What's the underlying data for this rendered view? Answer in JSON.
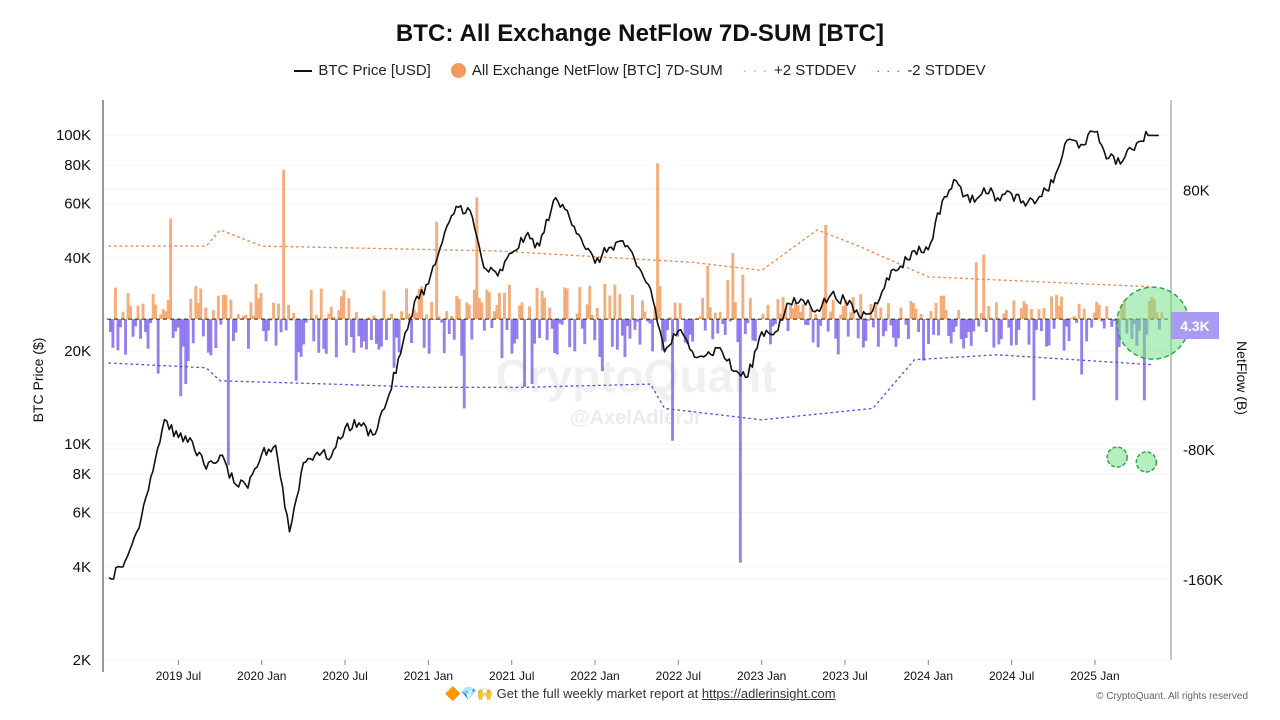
{
  "header": {
    "title": "BTC: All Exchange NetFlow 7D-SUM [BTC]"
  },
  "legend": {
    "items": [
      {
        "label": "BTC Price [USD]",
        "kind": "line",
        "color": "#111111"
      },
      {
        "label": "All Exchange NetFlow [BTC] 7D-SUM",
        "kind": "dot",
        "color": "#f29a5a"
      },
      {
        "label": "+2 STDDEV",
        "kind": "dotted",
        "color": "#e8895a"
      },
      {
        "label": "-2 STDDEV",
        "kind": "dotted",
        "color": "#5b57e0"
      }
    ]
  },
  "axes": {
    "left_label": "BTC Price ($)",
    "right_label": "NetFlow (B)"
  },
  "badge": {
    "value_label": "4.3K",
    "color": "#a99af4"
  },
  "watermark": {
    "brand": "CryptoQuant",
    "handle": "@AxelAdlerJr"
  },
  "footer": {
    "emoji": "🔶💎🙌",
    "text": "Get the full weekly market report at",
    "link": "https://adlerinsight.com",
    "copyright": "© CryptoQuant. All rights reserved"
  },
  "chart_data": {
    "type": "line",
    "title": "BTC: All Exchange NetFlow 7D-SUM [BTC]",
    "x_ticks": [
      "2019 Jul",
      "2020 Jan",
      "2020 Jul",
      "2021 Jan",
      "2021 Jul",
      "2022 Jan",
      "2022 Jul",
      "2023 Jan",
      "2023 Jul",
      "2024 Jan",
      "2024 Jul",
      "2025 Jan"
    ],
    "x_range": [
      "2019-02",
      "2025-05"
    ],
    "y_left": {
      "label": "BTC Price ($)",
      "scale": "log",
      "range": [
        2000,
        130000
      ],
      "ticks": [
        {
          "v": 2000,
          "label": "2K"
        },
        {
          "v": 4000,
          "label": "4K"
        },
        {
          "v": 6000,
          "label": "6K"
        },
        {
          "v": 8000,
          "label": "8K"
        },
        {
          "v": 10000,
          "label": "10K"
        },
        {
          "v": 20000,
          "label": "20K"
        },
        {
          "v": 40000,
          "label": "40K"
        },
        {
          "v": 60000,
          "label": "60K"
        },
        {
          "v": 80000,
          "label": "80K"
        },
        {
          "v": 100000,
          "label": "100K"
        }
      ]
    },
    "y_right": {
      "label": "NetFlow (B)",
      "scale": "linear",
      "range": [
        -210000,
        135000
      ],
      "ticks": [
        {
          "v": 80000,
          "label": "80K"
        },
        {
          "v": -80000,
          "label": "-80K"
        },
        {
          "v": -160000,
          "label": "-160K"
        }
      ]
    },
    "latest_netflow": 4300,
    "series": [
      {
        "name": "BTC Price [USD]",
        "axis": "left",
        "color": "#111111",
        "points": [
          [
            "2019-02",
            3700
          ],
          [
            "2019-03",
            4000
          ],
          [
            "2019-04",
            5200
          ],
          [
            "2019-05",
            7800
          ],
          [
            "2019-06",
            12000
          ],
          [
            "2019-07",
            10500
          ],
          [
            "2019-08",
            10200
          ],
          [
            "2019-09",
            8300
          ],
          [
            "2019-10",
            9200
          ],
          [
            "2019-11",
            7500
          ],
          [
            "2019-12",
            7200
          ],
          [
            "2020-01",
            9300
          ],
          [
            "2020-02",
            9900
          ],
          [
            "2020-03",
            5200
          ],
          [
            "2020-04",
            8700
          ],
          [
            "2020-05",
            9400
          ],
          [
            "2020-06",
            9100
          ],
          [
            "2020-07",
            11300
          ],
          [
            "2020-08",
            11700
          ],
          [
            "2020-09",
            10700
          ],
          [
            "2020-10",
            13700
          ],
          [
            "2020-11",
            19600
          ],
          [
            "2020-12",
            28900
          ],
          [
            "2021-01",
            33000
          ],
          [
            "2021-02",
            45000
          ],
          [
            "2021-03",
            58800
          ],
          [
            "2021-04",
            57000
          ],
          [
            "2021-05",
            37300
          ],
          [
            "2021-06",
            35000
          ],
          [
            "2021-07",
            41500
          ],
          [
            "2021-08",
            47100
          ],
          [
            "2021-09",
            43800
          ],
          [
            "2021-10",
            61300
          ],
          [
            "2021-11",
            57000
          ],
          [
            "2021-12",
            46300
          ],
          [
            "2022-01",
            38500
          ],
          [
            "2022-02",
            43200
          ],
          [
            "2022-03",
            45500
          ],
          [
            "2022-04",
            37700
          ],
          [
            "2022-05",
            31800
          ],
          [
            "2022-06",
            19900
          ],
          [
            "2022-07",
            23300
          ],
          [
            "2022-08",
            20000
          ],
          [
            "2022-09",
            19400
          ],
          [
            "2022-10",
            20500
          ],
          [
            "2022-11",
            17200
          ],
          [
            "2022-12",
            16500
          ],
          [
            "2023-01",
            23100
          ],
          [
            "2023-02",
            23100
          ],
          [
            "2023-03",
            28500
          ],
          [
            "2023-04",
            29200
          ],
          [
            "2023-05",
            27200
          ],
          [
            "2023-06",
            30500
          ],
          [
            "2023-07",
            29200
          ],
          [
            "2023-08",
            26000
          ],
          [
            "2023-09",
            27000
          ],
          [
            "2023-10",
            34500
          ],
          [
            "2023-11",
            37700
          ],
          [
            "2023-12",
            42300
          ],
          [
            "2024-01",
            42600
          ],
          [
            "2024-02",
            61200
          ],
          [
            "2024-03",
            71300
          ],
          [
            "2024-04",
            60600
          ],
          [
            "2024-05",
            67500
          ],
          [
            "2024-06",
            62700
          ],
          [
            "2024-07",
            64600
          ],
          [
            "2024-08",
            59000
          ],
          [
            "2024-09",
            63300
          ],
          [
            "2024-10",
            70200
          ],
          [
            "2024-11",
            96400
          ],
          [
            "2024-12",
            93400
          ],
          [
            "2025-01",
            102400
          ],
          [
            "2025-02",
            84300
          ],
          [
            "2025-03",
            82500
          ],
          [
            "2025-04",
            94200
          ],
          [
            "2025-05",
            104000
          ]
        ]
      },
      {
        "name": "All Exchange NetFlow [BTC] 7D-SUM",
        "axis": "right",
        "color": "#f29a5a",
        "negative_color": "#7b61e8",
        "spikes": [
          [
            "2019-06",
            62000
          ],
          [
            "2019-07",
            -40000
          ],
          [
            "2019-10",
            -90000
          ],
          [
            "2020-02",
            92000
          ],
          [
            "2020-03",
            -38000
          ],
          [
            "2020-10",
            -30000
          ],
          [
            "2021-01",
            60000
          ],
          [
            "2021-03",
            -55000
          ],
          [
            "2021-04",
            75000
          ],
          [
            "2021-08",
            -40000
          ],
          [
            "2022-01",
            -32000
          ],
          [
            "2022-05",
            96000
          ],
          [
            "2022-06",
            -75000
          ],
          [
            "2022-11",
            -150000
          ],
          [
            "2023-05",
            58000
          ],
          [
            "2024-04",
            35000
          ],
          [
            "2024-08",
            -50000
          ],
          [
            "2025-02",
            -50000
          ],
          [
            "2025-04",
            -50000
          ],
          [
            "2025-05",
            4300
          ]
        ]
      },
      {
        "name": "+2 STDDEV",
        "axis": "right",
        "color": "#e8895a",
        "points": [
          [
            "2019-02",
            45000
          ],
          [
            "2019-09",
            45000
          ],
          [
            "2019-10",
            55000
          ],
          [
            "2020-01",
            45000
          ],
          [
            "2021-06",
            42000
          ],
          [
            "2022-08",
            35000
          ],
          [
            "2023-01",
            30000
          ],
          [
            "2023-05",
            55000
          ],
          [
            "2023-08",
            45000
          ],
          [
            "2024-01",
            26000
          ],
          [
            "2025-05",
            20000
          ]
        ]
      },
      {
        "name": "-2 STDDEV",
        "axis": "right",
        "color": "#5b57e0",
        "points": [
          [
            "2019-02",
            -27000
          ],
          [
            "2019-09",
            -30000
          ],
          [
            "2019-10",
            -38000
          ],
          [
            "2020-06",
            -40000
          ],
          [
            "2021-01",
            -42000
          ],
          [
            "2021-08",
            -42000
          ],
          [
            "2022-05",
            -40000
          ],
          [
            "2022-06",
            -55000
          ],
          [
            "2023-01",
            -62000
          ],
          [
            "2023-09",
            -55000
          ],
          [
            "2023-12",
            -25000
          ],
          [
            "2024-06",
            -22000
          ],
          [
            "2025-05",
            -28000
          ]
        ]
      }
    ]
  }
}
